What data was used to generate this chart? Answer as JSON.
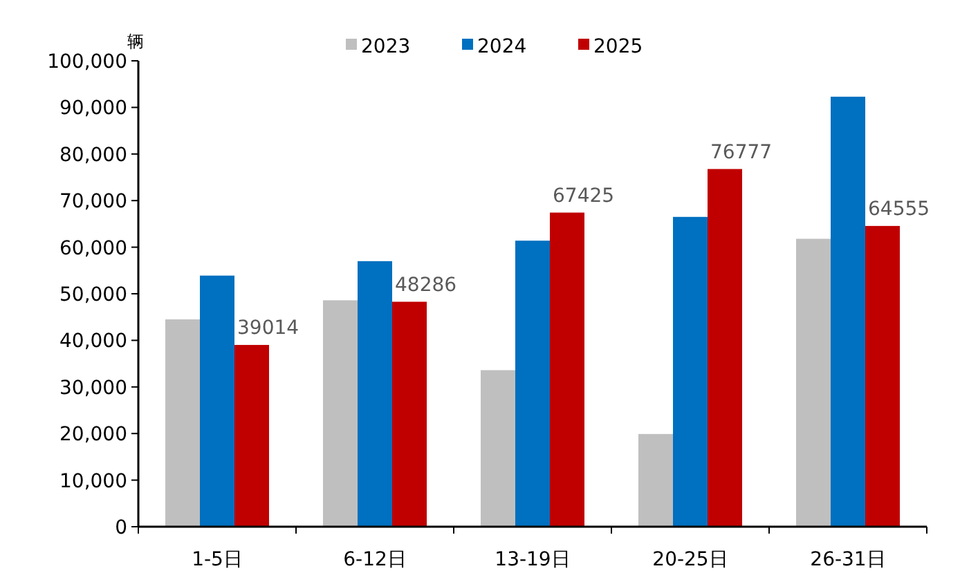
{
  "chart_data": {
    "type": "bar",
    "ylabel": "辆",
    "categories": [
      "1-5日",
      "6-12日",
      "13-19日",
      "20-25日",
      "26-31日"
    ],
    "series": [
      {
        "name": "2023",
        "color": "#bfbfbf",
        "values": [
          44500,
          48600,
          33600,
          19900,
          61800
        ]
      },
      {
        "name": "2024",
        "color": "#0070c0",
        "values": [
          53900,
          57000,
          61400,
          66500,
          92300
        ]
      },
      {
        "name": "2025",
        "color": "#c00000",
        "values": [
          39014,
          48286,
          67425,
          76777,
          64555
        ],
        "value_labels": [
          "39014",
          "48286",
          "67425",
          "76777",
          "64555"
        ]
      }
    ],
    "ylim": [
      0,
      100000
    ],
    "yticks": [
      0,
      {
        "value": 10000,
        "label": "10,000"
      },
      {
        "value": 20000,
        "label": "20,000"
      },
      {
        "value": 30000,
        "label": "30,000"
      },
      {
        "value": 40000,
        "label": "40,000"
      },
      {
        "value": 50000,
        "label": "50,000"
      },
      {
        "value": 60000,
        "label": "60,000"
      },
      {
        "value": 70000,
        "label": "70,000"
      },
      {
        "value": 80000,
        "label": "80,000"
      },
      {
        "value": 90000,
        "label": "90,000"
      },
      {
        "value": 100000,
        "label": "100,000"
      }
    ],
    "grid": false,
    "legend": "top"
  }
}
